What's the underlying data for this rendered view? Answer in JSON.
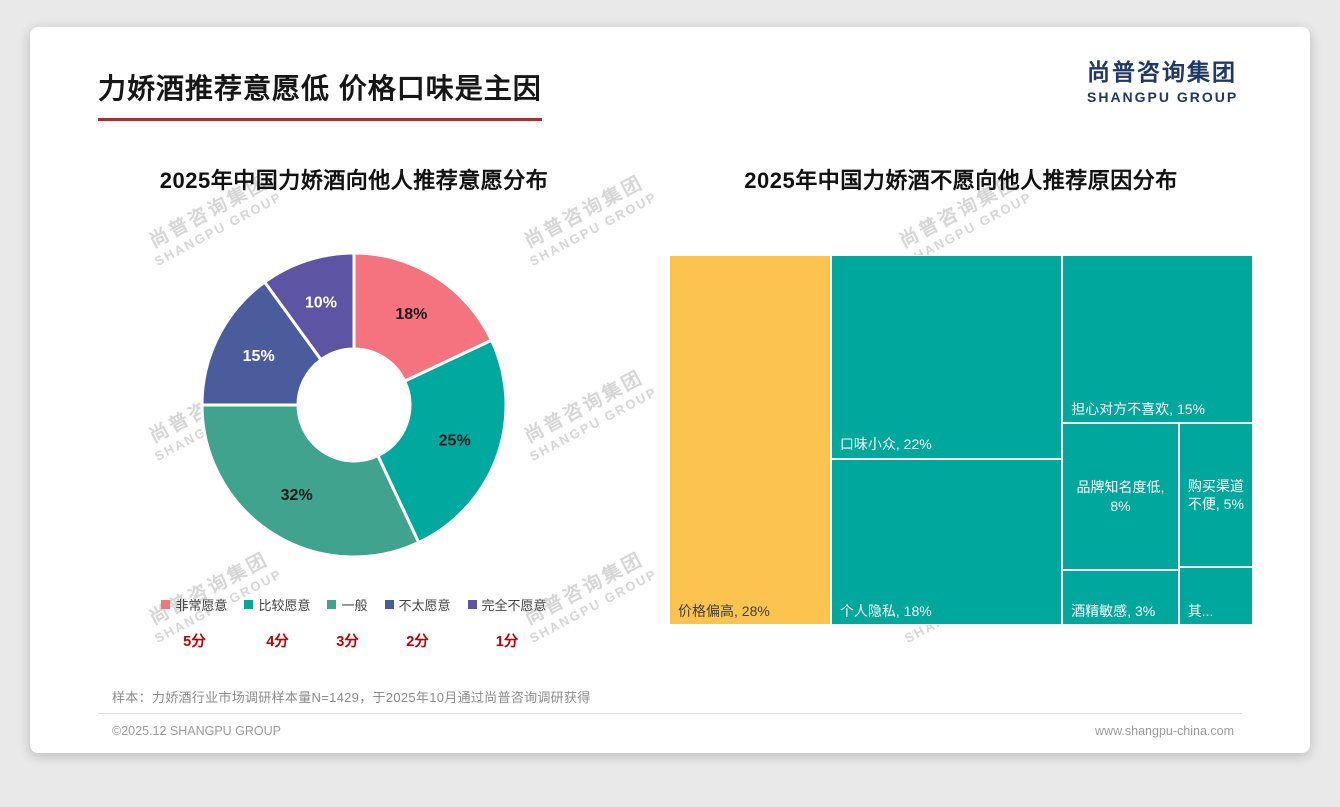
{
  "theme": {
    "accent_red": "#C00000",
    "logo_navy": "#1F3864",
    "title_underline": "#B02A30",
    "teal": "#00A79D",
    "yellow": "#FCC34E"
  },
  "header": {
    "title": "力娇酒推荐意愿低 价格口味是主因"
  },
  "logo": {
    "cn": "尚普咨询集团",
    "en": "SHANGPU GROUP"
  },
  "watermark": {
    "line1": "尚普咨询集团",
    "line2": "SHANGPU GROUP"
  },
  "footnote": "样本：力娇酒行业市场调研样本量N=1429，于2025年10月通过尚普咨询调研获得",
  "footer": {
    "copyright": "©2025.12 SHANGPU GROUP",
    "website": "www.shangpu-china.com"
  },
  "chart_data": [
    {
      "type": "pie",
      "variant": "donut",
      "title": "2025年中国力娇酒向他人推荐意愿分布",
      "start_angle_deg": 0,
      "direction": "clockwise",
      "legend_position": "bottom",
      "score_color": "#C00000",
      "segments": [
        {
          "label": "非常愿意",
          "score": "5分",
          "value": 18,
          "display": "18%",
          "color": "#F4737E",
          "label_color": "#1a1a1a"
        },
        {
          "label": "比较愿意",
          "score": "4分",
          "value": 25,
          "display": "25%",
          "color": "#00A89E",
          "label_color": "#1a1a1a"
        },
        {
          "label": "一般",
          "score": "3分",
          "value": 32,
          "display": "32%",
          "color": "#3FA38E",
          "label_color": "#1a1a1a"
        },
        {
          "label": "不太愿意",
          "score": "2分",
          "value": 15,
          "display": "15%",
          "color": "#4A5C9C",
          "label_color": "#ffffff"
        },
        {
          "label": "完全不愿意",
          "score": "1分",
          "value": 10,
          "display": "10%",
          "color": "#5D55A3",
          "label_color": "#ffffff"
        }
      ]
    },
    {
      "type": "treemap",
      "title": "2025年中国力娇酒不愿向他人推荐原因分布",
      "gap_color": "#ffffff",
      "root": {
        "dir": "row",
        "children": [
          {
            "label": "价格偏高, 28%",
            "value": 28,
            "color": "#FCC34E",
            "text_color": "#404040"
          },
          {
            "dir": "col",
            "children": [
              {
                "label": "口味小众, 22%",
                "value": 22,
                "color": "#00A79D",
                "text_color": "#ffffff"
              },
              {
                "label": "个人隐私, 18%",
                "value": 18,
                "color": "#00A79D",
                "text_color": "#ffffff"
              }
            ]
          },
          {
            "dir": "col",
            "children": [
              {
                "label": "担心对方不喜欢, 15%",
                "value": 15,
                "color": "#00A79D",
                "text_color": "#ffffff"
              },
              {
                "dir": "row",
                "children": [
                  {
                    "dir": "col",
                    "children": [
                      {
                        "label": "品牌知名度低, 8%",
                        "value": 8,
                        "color": "#00A79D",
                        "text_color": "#ffffff",
                        "align": "center"
                      },
                      {
                        "label": "酒精敏感, 3%",
                        "value": 3,
                        "color": "#00A79D",
                        "text_color": "#ffffff"
                      }
                    ]
                  },
                  {
                    "dir": "col",
                    "children": [
                      {
                        "label": "购买渠道不便, 5%",
                        "value": 5,
                        "color": "#00A79D",
                        "text_color": "#ffffff",
                        "align": "center"
                      },
                      {
                        "label": "其...",
                        "value": 2,
                        "color": "#00A79D",
                        "text_color": "#ffffff"
                      }
                    ]
                  }
                ]
              }
            ]
          }
        ]
      }
    }
  ]
}
